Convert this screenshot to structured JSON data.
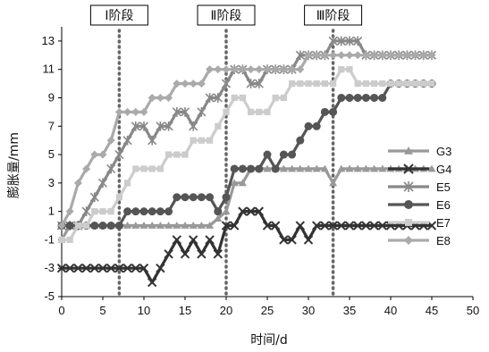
{
  "chart_data": {
    "type": "line",
    "xlabel": "时间/d",
    "ylabel": "膨胀量/mm",
    "xlim": [
      0,
      50
    ],
    "ylim": [
      -5,
      14
    ],
    "xticks": [
      0,
      5,
      10,
      15,
      20,
      25,
      30,
      35,
      40,
      45,
      50
    ],
    "yticks": [
      -5,
      -3,
      -1,
      1,
      3,
      5,
      7,
      9,
      11,
      13
    ],
    "grid": false,
    "legend_position": "right",
    "stage_lines": [
      {
        "label": "Ⅰ阶段",
        "x": 7
      },
      {
        "label": "Ⅱ阶段",
        "x": 20
      },
      {
        "label": "Ⅲ阶段",
        "x": 33
      }
    ],
    "series": [
      {
        "name": "G3",
        "color": "#999999",
        "marker": "triangle",
        "points": [
          [
            0,
            -1
          ],
          [
            1,
            0
          ],
          [
            2,
            0
          ],
          [
            3,
            0
          ],
          [
            4,
            0
          ],
          [
            5,
            0
          ],
          [
            6,
            0
          ],
          [
            7,
            0
          ],
          [
            8,
            0
          ],
          [
            9,
            0
          ],
          [
            10,
            0
          ],
          [
            11,
            0
          ],
          [
            12,
            0
          ],
          [
            13,
            0
          ],
          [
            14,
            0
          ],
          [
            15,
            0
          ],
          [
            16,
            0
          ],
          [
            17,
            0
          ],
          [
            18,
            0
          ],
          [
            19,
            0.5
          ],
          [
            20,
            1
          ],
          [
            21,
            3
          ],
          [
            22,
            3
          ],
          [
            23,
            4
          ],
          [
            24,
            4
          ],
          [
            25,
            4
          ],
          [
            26,
            4
          ],
          [
            27,
            4
          ],
          [
            28,
            4
          ],
          [
            29,
            4
          ],
          [
            30,
            4
          ],
          [
            31,
            4
          ],
          [
            32,
            4
          ],
          [
            33,
            3
          ],
          [
            34,
            4
          ],
          [
            35,
            4
          ],
          [
            36,
            4
          ],
          [
            37,
            4
          ],
          [
            38,
            4
          ],
          [
            39,
            4
          ],
          [
            40,
            4
          ],
          [
            41,
            4
          ],
          [
            42,
            4
          ],
          [
            43,
            4
          ],
          [
            44,
            4
          ],
          [
            45,
            4
          ]
        ]
      },
      {
        "name": "G4",
        "color": "#333333",
        "marker": "x",
        "points": [
          [
            0,
            -3
          ],
          [
            1,
            -3
          ],
          [
            2,
            -3
          ],
          [
            3,
            -3
          ],
          [
            4,
            -3
          ],
          [
            5,
            -3
          ],
          [
            6,
            -3
          ],
          [
            7,
            -3
          ],
          [
            8,
            -3
          ],
          [
            9,
            -3
          ],
          [
            10,
            -3
          ],
          [
            11,
            -4
          ],
          [
            12,
            -3
          ],
          [
            13,
            -2
          ],
          [
            14,
            -1
          ],
          [
            15,
            -2
          ],
          [
            16,
            -1
          ],
          [
            17,
            -2
          ],
          [
            18,
            -1
          ],
          [
            19,
            -2
          ],
          [
            20,
            0
          ],
          [
            21,
            0
          ],
          [
            22,
            1
          ],
          [
            23,
            1
          ],
          [
            24,
            1
          ],
          [
            25,
            0
          ],
          [
            26,
            0
          ],
          [
            27,
            -1
          ],
          [
            28,
            -1
          ],
          [
            29,
            0
          ],
          [
            30,
            -1
          ],
          [
            31,
            0
          ],
          [
            32,
            0
          ],
          [
            33,
            0
          ],
          [
            34,
            0
          ],
          [
            35,
            0
          ],
          [
            36,
            0
          ],
          [
            37,
            0
          ],
          [
            38,
            0
          ],
          [
            39,
            0
          ],
          [
            40,
            0
          ],
          [
            41,
            0
          ],
          [
            42,
            0
          ],
          [
            43,
            0
          ],
          [
            44,
            0
          ],
          [
            45,
            0
          ]
        ]
      },
      {
        "name": "E5",
        "color": "#888888",
        "marker": "star",
        "points": [
          [
            0,
            0
          ],
          [
            1,
            0
          ],
          [
            2,
            0
          ],
          [
            3,
            1
          ],
          [
            4,
            2
          ],
          [
            5,
            3
          ],
          [
            6,
            4
          ],
          [
            7,
            5
          ],
          [
            8,
            6
          ],
          [
            9,
            7
          ],
          [
            10,
            7
          ],
          [
            11,
            6
          ],
          [
            12,
            7
          ],
          [
            13,
            7
          ],
          [
            14,
            8
          ],
          [
            15,
            8
          ],
          [
            16,
            7
          ],
          [
            17,
            8
          ],
          [
            18,
            9
          ],
          [
            19,
            9
          ],
          [
            20,
            10
          ],
          [
            21,
            11
          ],
          [
            22,
            11
          ],
          [
            23,
            10
          ],
          [
            24,
            10
          ],
          [
            25,
            11
          ],
          [
            26,
            11
          ],
          [
            27,
            11
          ],
          [
            28,
            11
          ],
          [
            29,
            12
          ],
          [
            30,
            12
          ],
          [
            31,
            12
          ],
          [
            32,
            12
          ],
          [
            33,
            13
          ],
          [
            34,
            13
          ],
          [
            35,
            13
          ],
          [
            36,
            13
          ],
          [
            37,
            12
          ],
          [
            38,
            12
          ],
          [
            39,
            12
          ],
          [
            40,
            12
          ],
          [
            41,
            12
          ],
          [
            42,
            12
          ],
          [
            43,
            12
          ],
          [
            44,
            12
          ],
          [
            45,
            12
          ]
        ]
      },
      {
        "name": "E6",
        "color": "#555555",
        "marker": "circle",
        "points": [
          [
            0,
            0
          ],
          [
            1,
            0
          ],
          [
            2,
            0
          ],
          [
            3,
            0
          ],
          [
            4,
            0
          ],
          [
            5,
            0
          ],
          [
            6,
            0
          ],
          [
            7,
            0
          ],
          [
            8,
            1
          ],
          [
            9,
            1
          ],
          [
            10,
            1
          ],
          [
            11,
            1
          ],
          [
            12,
            1
          ],
          [
            13,
            1
          ],
          [
            14,
            2
          ],
          [
            15,
            2
          ],
          [
            16,
            2
          ],
          [
            17,
            2
          ],
          [
            18,
            2
          ],
          [
            19,
            1
          ],
          [
            20,
            2
          ],
          [
            21,
            4
          ],
          [
            22,
            4
          ],
          [
            23,
            4
          ],
          [
            24,
            4
          ],
          [
            25,
            5
          ],
          [
            26,
            4
          ],
          [
            27,
            5
          ],
          [
            28,
            5
          ],
          [
            29,
            6
          ],
          [
            30,
            7
          ],
          [
            31,
            7
          ],
          [
            32,
            8
          ],
          [
            33,
            8
          ],
          [
            34,
            9
          ],
          [
            35,
            9
          ],
          [
            36,
            9
          ],
          [
            37,
            9
          ],
          [
            38,
            9
          ],
          [
            39,
            9
          ],
          [
            40,
            10
          ],
          [
            41,
            10
          ],
          [
            42,
            10
          ],
          [
            43,
            10
          ],
          [
            44,
            10
          ],
          [
            45,
            10
          ]
        ]
      },
      {
        "name": "E7",
        "color": "#cccccc",
        "marker": "square",
        "points": [
          [
            0,
            -1
          ],
          [
            1,
            -1
          ],
          [
            2,
            0
          ],
          [
            3,
            0
          ],
          [
            4,
            1
          ],
          [
            5,
            1
          ],
          [
            6,
            1
          ],
          [
            7,
            2
          ],
          [
            8,
            3
          ],
          [
            9,
            4
          ],
          [
            10,
            4
          ],
          [
            11,
            4
          ],
          [
            12,
            4
          ],
          [
            13,
            5
          ],
          [
            14,
            5
          ],
          [
            15,
            5
          ],
          [
            16,
            6
          ],
          [
            17,
            6
          ],
          [
            18,
            6
          ],
          [
            19,
            7
          ],
          [
            20,
            8
          ],
          [
            21,
            9
          ],
          [
            22,
            9
          ],
          [
            23,
            8
          ],
          [
            24,
            8
          ],
          [
            25,
            8
          ],
          [
            26,
            9
          ],
          [
            27,
            9
          ],
          [
            28,
            10
          ],
          [
            29,
            10
          ],
          [
            30,
            10
          ],
          [
            31,
            10
          ],
          [
            32,
            10
          ],
          [
            33,
            10
          ],
          [
            34,
            11
          ],
          [
            35,
            11
          ],
          [
            36,
            10
          ],
          [
            37,
            10
          ],
          [
            38,
            10
          ],
          [
            39,
            10
          ],
          [
            40,
            10
          ],
          [
            41,
            10
          ],
          [
            42,
            10
          ],
          [
            43,
            10
          ],
          [
            44,
            10
          ],
          [
            45,
            10
          ]
        ]
      },
      {
        "name": "E8",
        "color": "#aaaaaa",
        "marker": "diamond",
        "points": [
          [
            0,
            0
          ],
          [
            1,
            1
          ],
          [
            2,
            3
          ],
          [
            3,
            4
          ],
          [
            4,
            5
          ],
          [
            5,
            5
          ],
          [
            6,
            6
          ],
          [
            7,
            8
          ],
          [
            8,
            8
          ],
          [
            9,
            8
          ],
          [
            10,
            8
          ],
          [
            11,
            9
          ],
          [
            12,
            9
          ],
          [
            13,
            9
          ],
          [
            14,
            10
          ],
          [
            15,
            10
          ],
          [
            16,
            10
          ],
          [
            17,
            10
          ],
          [
            18,
            11
          ],
          [
            19,
            11
          ],
          [
            20,
            11
          ],
          [
            21,
            11
          ],
          [
            22,
            11
          ],
          [
            23,
            11
          ],
          [
            24,
            11
          ],
          [
            25,
            11
          ],
          [
            26,
            11
          ],
          [
            27,
            11
          ],
          [
            28,
            11
          ],
          [
            29,
            11
          ],
          [
            30,
            12
          ],
          [
            31,
            12
          ],
          [
            32,
            12
          ],
          [
            33,
            12
          ],
          [
            34,
            12
          ],
          [
            35,
            12
          ],
          [
            36,
            12
          ],
          [
            37,
            12
          ],
          [
            38,
            12
          ],
          [
            39,
            12
          ],
          [
            40,
            12
          ],
          [
            41,
            12
          ],
          [
            42,
            12
          ],
          [
            43,
            12
          ],
          [
            44,
            12
          ],
          [
            45,
            12
          ]
        ]
      }
    ]
  }
}
